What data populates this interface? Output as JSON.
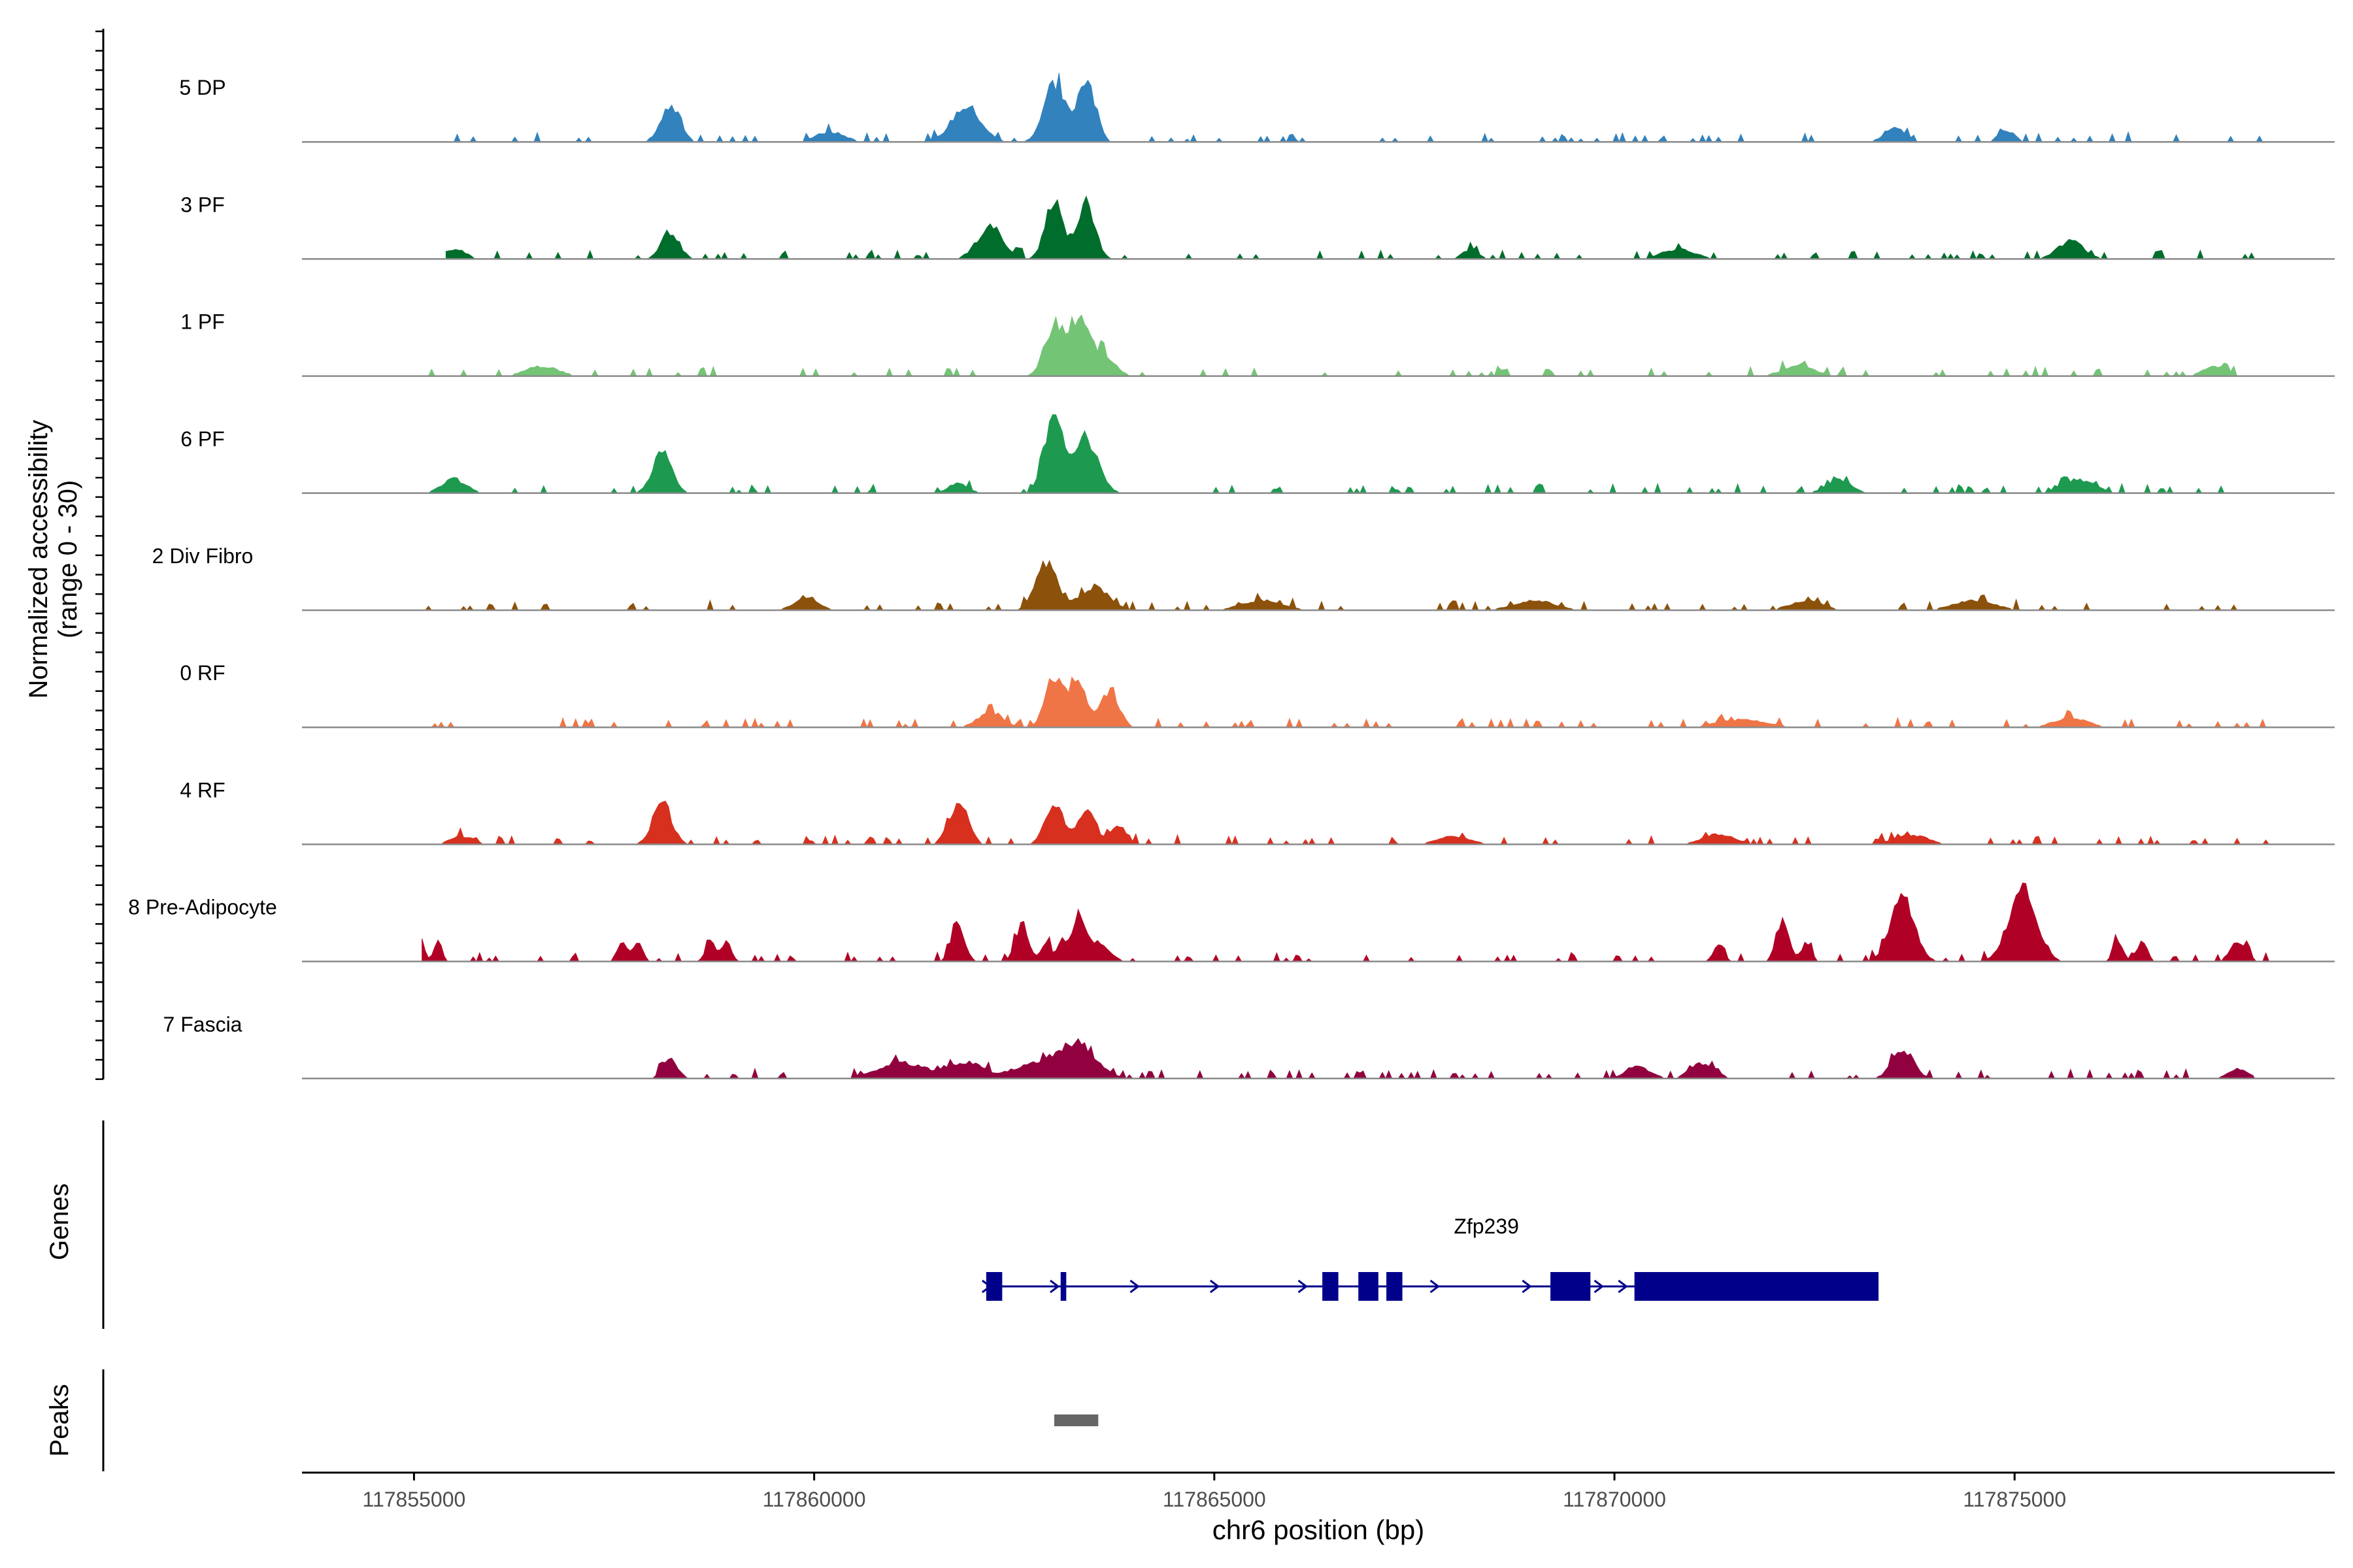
{
  "chart_data": {
    "type": "area",
    "title": "",
    "xlabel": "chr6 position (bp)",
    "ylabel_line1": "Normalized accessibility",
    "ylabel_line2": "(range 0 - 30)",
    "xlim": [
      117853600,
      117879000
    ],
    "ylim": [
      0,
      30
    ],
    "xticks": [
      117855000,
      117860000,
      117865000,
      117870000,
      117875000
    ],
    "xtick_labels": [
      "117855000",
      "117860000",
      "117865000",
      "117870000",
      "117875000"
    ],
    "series": [
      {
        "name": "5 DP",
        "color": "#3182bd",
        "domain": [
          117855100,
          117878200
        ],
        "peaks": [
          [
            117858200,
            17,
            120
          ],
          [
            117861900,
            18,
            180
          ],
          [
            117863000,
            30,
            130
          ],
          [
            117863400,
            33,
            110
          ],
          [
            117873500,
            8,
            120
          ],
          [
            117874900,
            6,
            100
          ],
          [
            117860200,
            5,
            180
          ]
        ]
      },
      {
        "name": "3 PF",
        "color": "#006d2c",
        "domain": [
          117855400,
          117878200
        ],
        "peaks": [
          [
            117858200,
            14,
            110
          ],
          [
            117862200,
            16,
            160
          ],
          [
            117863000,
            31,
            110
          ],
          [
            117863400,
            28,
            110
          ],
          [
            117875700,
            9,
            160
          ],
          [
            117855500,
            5,
            140
          ],
          [
            117868200,
            5,
            100
          ],
          [
            117870800,
            5,
            200
          ]
        ]
      },
      {
        "name": "1 PF",
        "color": "#74c476",
        "domain": [
          117855100,
          117878200
        ],
        "peaks": [
          [
            117863000,
            25,
            120
          ],
          [
            117863300,
            26,
            130
          ],
          [
            117863600,
            10,
            150
          ],
          [
            117856600,
            5,
            200
          ],
          [
            117872300,
            5,
            200
          ],
          [
            117877500,
            5,
            150
          ]
        ]
      },
      {
        "name": "6 PF",
        "color": "#1d9a50",
        "domain": [
          117855100,
          117878000
        ],
        "peaks": [
          [
            117858100,
            20,
            120
          ],
          [
            117863000,
            40,
            120
          ],
          [
            117863400,
            28,
            150
          ],
          [
            117855500,
            7,
            150
          ],
          [
            117861800,
            5,
            120
          ],
          [
            117872800,
            7,
            150
          ],
          [
            117875800,
            7,
            200
          ]
        ]
      },
      {
        "name": "2 Div Fibro",
        "color": "#8c510a",
        "domain": [
          117855100,
          117878200
        ],
        "peaks": [
          [
            117862900,
            23,
            130
          ],
          [
            117863500,
            12,
            180
          ],
          [
            117859900,
            6,
            150
          ],
          [
            117865600,
            5,
            250
          ],
          [
            117869000,
            5,
            250
          ],
          [
            117872400,
            5,
            200
          ],
          [
            117874500,
            5,
            250
          ]
        ]
      },
      {
        "name": "0 RF",
        "color": "#f07546",
        "domain": [
          117855100,
          117878200
        ],
        "peaks": [
          [
            117862200,
            8,
            150
          ],
          [
            117863000,
            25,
            110
          ],
          [
            117863300,
            21,
            110
          ],
          [
            117863700,
            19,
            110
          ],
          [
            117871600,
            4,
            300
          ],
          [
            117875700,
            5,
            200
          ]
        ]
      },
      {
        "name": "4 RF",
        "color": "#d7301f",
        "domain": [
          117855100,
          117878200
        ],
        "peaks": [
          [
            117858100,
            19,
            120
          ],
          [
            117861800,
            20,
            120
          ],
          [
            117863000,
            21,
            110
          ],
          [
            117863400,
            17,
            110
          ],
          [
            117863800,
            9,
            100
          ],
          [
            117855600,
            4,
            150
          ],
          [
            117868000,
            4,
            200
          ],
          [
            117871300,
            5,
            200
          ],
          [
            117873700,
            5,
            200
          ]
        ]
      },
      {
        "name": "8 Pre-Adipocyte",
        "color": "#b10026",
        "domain": [
          117855100,
          117878200
        ],
        "peaks": [
          [
            117855100,
            10,
            40
          ],
          [
            117855300,
            10,
            50
          ],
          [
            117857600,
            10,
            60
          ],
          [
            117857800,
            10,
            60
          ],
          [
            117858700,
            10,
            60
          ],
          [
            117858900,
            10,
            60
          ],
          [
            117861800,
            20,
            80
          ],
          [
            117862600,
            20,
            80
          ],
          [
            117862900,
            10,
            60
          ],
          [
            117863100,
            10,
            60
          ],
          [
            117863300,
            20,
            70
          ],
          [
            117863500,
            10,
            160
          ],
          [
            117871300,
            10,
            60
          ],
          [
            117872100,
            20,
            80
          ],
          [
            117872400,
            10,
            60
          ],
          [
            117873600,
            31,
            150
          ],
          [
            117875100,
            38,
            170
          ],
          [
            117876300,
            10,
            60
          ],
          [
            117876600,
            10,
            60
          ],
          [
            117877800,
            10,
            100
          ]
        ]
      },
      {
        "name": "7 Fascia",
        "color": "#91003f",
        "domain": [
          117857900,
          117878000
        ],
        "peaks": [
          [
            117858200,
            10,
            90
          ],
          [
            117863300,
            17,
            220
          ],
          [
            117862800,
            8,
            300
          ],
          [
            117861100,
            8,
            300
          ],
          [
            117861900,
            8,
            200
          ],
          [
            117870300,
            6,
            150
          ],
          [
            117871100,
            8,
            150
          ],
          [
            117873600,
            15,
            130
          ],
          [
            117877800,
            5,
            120
          ]
        ]
      }
    ],
    "genes_label": "Genes",
    "gene": {
      "name": "Zfp239",
      "color": "#00008b",
      "start": 117862150,
      "end": 117873300,
      "exons": [
        [
          117862150,
          117862350
        ],
        [
          117863080,
          117863150
        ],
        [
          117866350,
          117866550
        ],
        [
          117866800,
          117867050
        ],
        [
          117867150,
          117867350
        ],
        [
          117869200,
          117869700
        ],
        [
          117870250,
          117873300
        ]
      ],
      "arrows": [
        117862150,
        117863000,
        117864000,
        117865000,
        117866100,
        117867750,
        117868900,
        117869800,
        117870100
      ]
    },
    "peaks_label": "Peaks",
    "peak_regions": [
      [
        117863000,
        117863550
      ]
    ],
    "peak_color": "#666666"
  }
}
